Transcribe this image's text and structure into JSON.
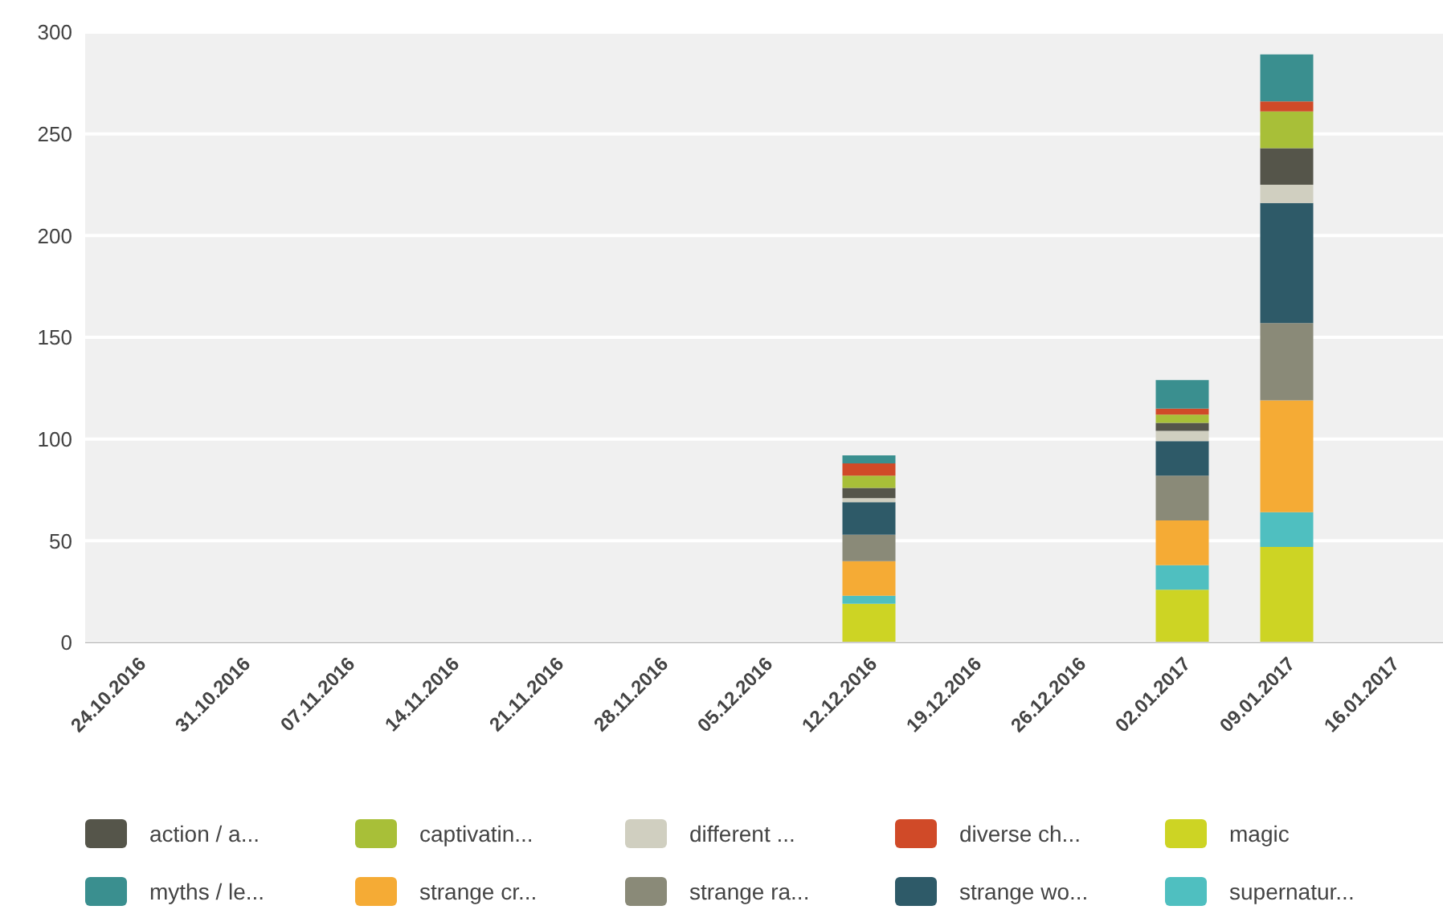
{
  "chart_data": {
    "type": "bar",
    "stacked": true,
    "grid": "y",
    "legend": "bottom",
    "categories": [
      "24.10.2016",
      "31.10.2016",
      "07.11.2016",
      "14.11.2016",
      "21.11.2016",
      "28.11.2016",
      "05.12.2016",
      "12.12.2016",
      "19.12.2016",
      "26.12.2016",
      "02.01.2017",
      "09.01.2017",
      "16.01.2017"
    ],
    "ylim": [
      0,
      300
    ],
    "yticks": [
      0,
      50,
      100,
      150,
      200,
      250,
      300
    ],
    "series": [
      {
        "name": "magic",
        "color": "#cdd424",
        "values": [
          0,
          0,
          0,
          0,
          0,
          0,
          0,
          19,
          0,
          0,
          26,
          47,
          0
        ]
      },
      {
        "name": "supernatur...",
        "color": "#4fbfc0",
        "values": [
          0,
          0,
          0,
          0,
          0,
          0,
          0,
          4,
          0,
          0,
          12,
          17,
          0
        ]
      },
      {
        "name": "strange cr...",
        "color": "#f5ab35",
        "values": [
          0,
          0,
          0,
          0,
          0,
          0,
          0,
          17,
          0,
          0,
          22,
          55,
          0
        ]
      },
      {
        "name": "strange ra...",
        "color": "#8a8a78",
        "values": [
          0,
          0,
          0,
          0,
          0,
          0,
          0,
          13,
          0,
          0,
          22,
          38,
          0
        ]
      },
      {
        "name": "strange wo...",
        "color": "#2e5a68",
        "values": [
          0,
          0,
          0,
          0,
          0,
          0,
          0,
          16,
          0,
          0,
          17,
          59,
          0
        ]
      },
      {
        "name": "different ...",
        "color": "#d0cfc0",
        "values": [
          0,
          0,
          0,
          0,
          0,
          0,
          0,
          2,
          0,
          0,
          5,
          9,
          0
        ]
      },
      {
        "name": "action / a...",
        "color": "#55554a",
        "values": [
          0,
          0,
          0,
          0,
          0,
          0,
          0,
          5,
          0,
          0,
          4,
          18,
          0
        ]
      },
      {
        "name": "captivatin...",
        "color": "#a8bf38",
        "values": [
          0,
          0,
          0,
          0,
          0,
          0,
          0,
          6,
          0,
          0,
          4,
          18,
          0
        ]
      },
      {
        "name": "diverse ch...",
        "color": "#d04a28",
        "values": [
          0,
          0,
          0,
          0,
          0,
          0,
          0,
          6,
          0,
          0,
          3,
          5,
          0
        ]
      },
      {
        "name": "myths / le...",
        "color": "#3a8f8f",
        "values": [
          0,
          0,
          0,
          0,
          0,
          0,
          0,
          4,
          0,
          0,
          14,
          23,
          0
        ]
      }
    ]
  }
}
